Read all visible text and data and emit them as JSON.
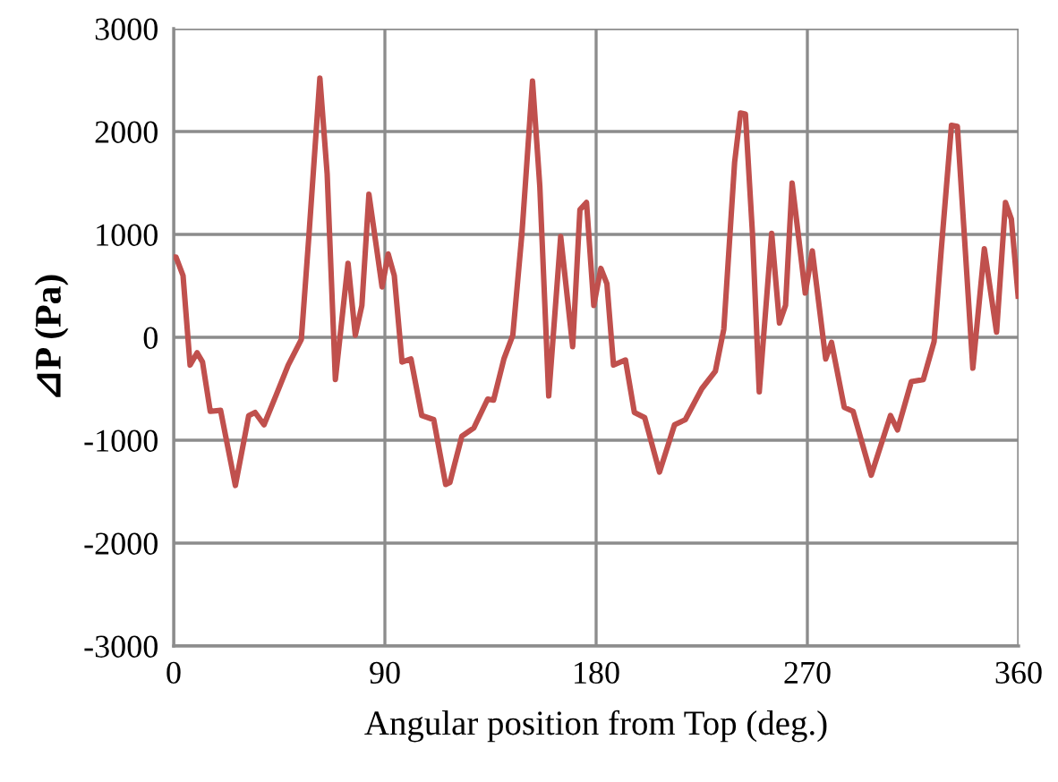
{
  "chart_data": {
    "type": "line",
    "xlabel": "Angular position from Top (deg.)",
    "ylabel": "⊿P (Pa)",
    "xlim": [
      0,
      360
    ],
    "xticks": [
      0,
      90,
      180,
      270,
      360
    ],
    "ylim": [
      -3000,
      3000
    ],
    "yticks": [
      -3000,
      -2000,
      -1000,
      0,
      1000,
      2000,
      3000
    ],
    "grid": true,
    "marker": "none",
    "line_style": "solid",
    "series": [
      {
        "color": "#c0504d",
        "x": [
          0,
          1,
          4,
          7,
          10,
          12.3,
          15.6,
          20,
          26.3,
          32,
          34.7,
          38.5,
          43.7,
          48.8,
          54.4,
          57.7,
          62.3,
          65.4,
          68.9,
          74.3,
          77.4,
          80.2,
          83.2,
          88.8,
          91.4,
          94,
          97.3,
          101.1,
          105.7,
          110.8,
          115.9,
          117.7,
          122.8,
          127.9,
          133.8,
          136.3,
          140.7,
          144.5,
          148.4,
          152.9,
          156,
          159.8,
          164.9,
          170,
          173.1,
          175.9,
          179,
          182,
          184.6,
          187.4,
          192.5,
          196.3,
          200.7,
          207,
          213.4,
          218,
          225,
          230.8,
          234.4,
          239,
          241.5,
          243.6,
          246.6,
          249.5,
          254.8,
          258.1,
          260.7,
          263.5,
          269.1,
          272.1,
          277.8,
          280.3,
          285.7,
          289.5,
          297.2,
          305.4,
          308.4,
          314.3,
          319.4,
          324,
          327,
          331.4,
          333.9,
          340.5,
          345.4,
          350.6,
          354.4,
          356.9,
          359.8
        ],
        "values": [
          780,
          780,
          600,
          -270,
          -150,
          -240,
          -720,
          -710,
          -1440,
          -760,
          -730,
          -850,
          -560,
          -270,
          -20,
          1010,
          2520,
          1590,
          -410,
          720,
          20,
          310,
          1390,
          490,
          810,
          600,
          -240,
          -210,
          -760,
          -800,
          -1430,
          -1410,
          -960,
          -880,
          -600,
          -610,
          -210,
          20,
          1010,
          2490,
          1470,
          -570,
          980,
          -90,
          1240,
          1310,
          310,
          670,
          520,
          -270,
          -220,
          -730,
          -780,
          -1310,
          -850,
          -800,
          -500,
          -330,
          80,
          1700,
          2180,
          2170,
          1010,
          -530,
          1010,
          140,
          310,
          1500,
          430,
          840,
          -210,
          -50,
          -680,
          -720,
          -1340,
          -760,
          -900,
          -430,
          -410,
          -40,
          840,
          2060,
          2050,
          -300,
          860,
          50,
          1310,
          1150,
          400
        ]
      }
    ]
  }
}
